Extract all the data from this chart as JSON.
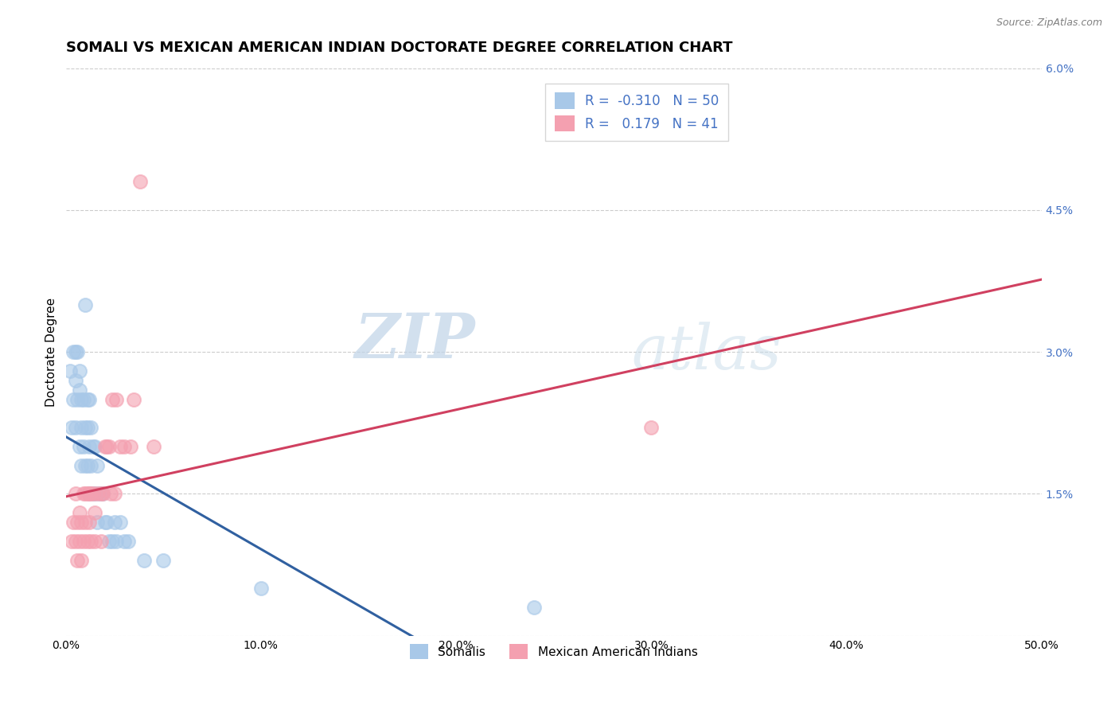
{
  "title": "SOMALI VS MEXICAN AMERICAN INDIAN DOCTORATE DEGREE CORRELATION CHART",
  "source": "Source: ZipAtlas.com",
  "ylabel": "Doctorate Degree",
  "xlim": [
    0,
    0.5
  ],
  "ylim": [
    0,
    0.06
  ],
  "yticks": [
    0.0,
    0.015,
    0.03,
    0.045,
    0.06
  ],
  "ytick_labels_right": [
    "",
    "1.5%",
    "3.0%",
    "4.5%",
    "6.0%"
  ],
  "xticks": [
    0.0,
    0.1,
    0.2,
    0.3,
    0.4,
    0.5
  ],
  "xtick_labels": [
    "0.0%",
    "10.0%",
    "20.0%",
    "30.0%",
    "40.0%",
    "50.0%"
  ],
  "somali_R": -0.31,
  "somali_N": 50,
  "mexican_R": 0.179,
  "mexican_N": 41,
  "somali_color": "#a8c8e8",
  "mexican_color": "#f4a0b0",
  "somali_line_color": "#3060a0",
  "mexican_line_color": "#d04060",
  "watermark_zip_color": "#b8cfe0",
  "watermark_atlas_color": "#c8d8e8",
  "bg_color": "#ffffff",
  "grid_color": "#cccccc",
  "right_tick_color": "#4472c4",
  "title_fontsize": 13,
  "axis_label_fontsize": 11,
  "tick_fontsize": 10,
  "somali_x": [
    0.002,
    0.003,
    0.004,
    0.004,
    0.005,
    0.005,
    0.005,
    0.006,
    0.006,
    0.007,
    0.007,
    0.007,
    0.008,
    0.008,
    0.008,
    0.009,
    0.009,
    0.01,
    0.01,
    0.01,
    0.011,
    0.011,
    0.011,
    0.012,
    0.012,
    0.012,
    0.013,
    0.013,
    0.014,
    0.014,
    0.015,
    0.015,
    0.016,
    0.016,
    0.017,
    0.018,
    0.019,
    0.02,
    0.021,
    0.022,
    0.024,
    0.025,
    0.026,
    0.028,
    0.03,
    0.032,
    0.04,
    0.05,
    0.1,
    0.24
  ],
  "somali_y": [
    0.028,
    0.022,
    0.03,
    0.025,
    0.03,
    0.027,
    0.022,
    0.03,
    0.025,
    0.028,
    0.026,
    0.02,
    0.025,
    0.022,
    0.018,
    0.025,
    0.02,
    0.035,
    0.022,
    0.018,
    0.025,
    0.022,
    0.018,
    0.025,
    0.02,
    0.015,
    0.022,
    0.018,
    0.02,
    0.015,
    0.02,
    0.015,
    0.018,
    0.012,
    0.015,
    0.015,
    0.015,
    0.012,
    0.012,
    0.01,
    0.01,
    0.012,
    0.01,
    0.012,
    0.01,
    0.01,
    0.008,
    0.008,
    0.005,
    0.003
  ],
  "mexican_x": [
    0.003,
    0.004,
    0.005,
    0.005,
    0.006,
    0.006,
    0.007,
    0.007,
    0.008,
    0.008,
    0.009,
    0.009,
    0.01,
    0.01,
    0.011,
    0.011,
    0.012,
    0.012,
    0.013,
    0.013,
    0.014,
    0.015,
    0.015,
    0.016,
    0.018,
    0.018,
    0.019,
    0.02,
    0.021,
    0.022,
    0.023,
    0.024,
    0.025,
    0.026,
    0.028,
    0.03,
    0.033,
    0.035,
    0.038,
    0.045,
    0.3
  ],
  "mexican_y": [
    0.01,
    0.012,
    0.01,
    0.015,
    0.008,
    0.012,
    0.01,
    0.013,
    0.012,
    0.008,
    0.015,
    0.01,
    0.015,
    0.012,
    0.015,
    0.01,
    0.015,
    0.012,
    0.015,
    0.01,
    0.015,
    0.013,
    0.01,
    0.015,
    0.015,
    0.01,
    0.015,
    0.02,
    0.02,
    0.02,
    0.015,
    0.025,
    0.015,
    0.025,
    0.02,
    0.02,
    0.02,
    0.025,
    0.048,
    0.02,
    0.022
  ]
}
